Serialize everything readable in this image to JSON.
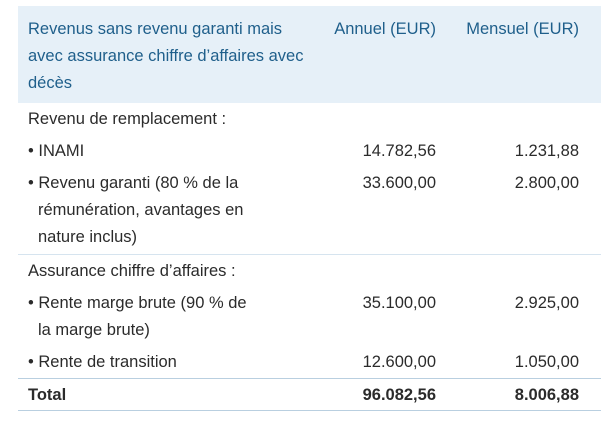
{
  "header": {
    "col1": "Revenus sans revenu garanti mais avec assurance chiffre d’affaires avec décès",
    "col2": "Annuel (EUR)",
    "col3": "Mensuel (EUR)"
  },
  "sections": {
    "replacement_title": "Revenu de remplacement :",
    "inami_label": "• INAMI",
    "inami_annual": "14.782,56",
    "inami_monthly": "1.231,88",
    "guaranteed_label_1": "• Revenu garanti (80 % de la",
    "guaranteed_label_2": "rémunération, avantages en",
    "guaranteed_label_3": "nature inclus)",
    "guaranteed_annual": "33.600,00",
    "guaranteed_monthly": "2.800,00",
    "turnover_title": "Assurance chiffre d’affaires :",
    "margin_label_1": "• Rente marge brute (90 % de",
    "margin_label_2": "la marge brute)",
    "margin_annual": "35.100,00",
    "margin_monthly": "2.925,00",
    "transition_label": "• Rente de transition",
    "transition_annual": "12.600,00",
    "transition_monthly": "1.050,00"
  },
  "total": {
    "label": "Total",
    "annual": "96.082,56",
    "monthly": "8.006,88"
  }
}
